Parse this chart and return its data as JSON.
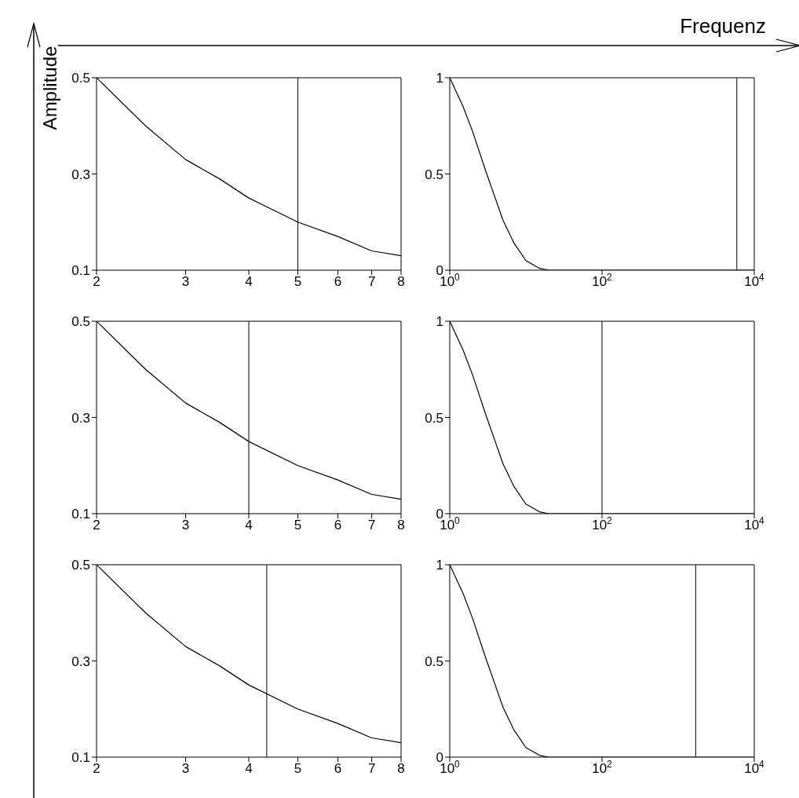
{
  "chart_data": [
    {
      "type": "line",
      "ylabel": "Amplitude",
      "x": [
        2,
        2.5,
        3,
        3.5,
        4,
        5,
        6,
        7,
        8
      ],
      "series": [
        {
          "color": "#000000",
          "values": [
            0.5,
            0.4,
            0.33,
            0.29,
            0.25,
            0.2,
            0.17,
            0.14,
            0.13
          ]
        }
      ],
      "xlim": [
        2,
        8
      ],
      "xticks": [
        2,
        3,
        4,
        5,
        6,
        7,
        8
      ],
      "ylim": [
        0.1,
        0.5
      ],
      "yticks": [
        0.1,
        0.3,
        0.5
      ],
      "log": "x",
      "ref_lines": [
        {
          "axis": "x",
          "value": 5,
          "color": "#000000"
        }
      ]
    },
    {
      "type": "line",
      "xlabel": "Frequenz",
      "x": [
        1,
        1.5,
        2,
        3,
        4,
        5,
        7,
        10,
        15,
        20,
        30,
        100,
        1000,
        10000
      ],
      "series": [
        {
          "color": "#000000",
          "values": [
            1,
            0.85,
            0.72,
            0.51,
            0.37,
            0.26,
            0.14,
            0.05,
            0.01,
            0,
            0,
            0,
            0,
            0
          ]
        }
      ],
      "xlim": [
        1,
        10000
      ],
      "xticks": [
        {
          "value": 1,
          "label": "10$^{0}$"
        },
        {
          "value": 100,
          "label": "10$^{2}$"
        },
        {
          "value": 10000,
          "label": "10$^{4}$"
        }
      ],
      "ylim": [
        0,
        1
      ],
      "yticks": [
        0,
        0.5,
        1
      ],
      "log": "x",
      "ref_lines": [
        {
          "axis": "x",
          "value": 5900,
          "color": "#000000"
        }
      ]
    },
    {
      "type": "line",
      "x": [
        2,
        2.5,
        3,
        3.5,
        4,
        5,
        6,
        7,
        8
      ],
      "series": [
        {
          "color": "#000000",
          "values": [
            0.5,
            0.4,
            0.33,
            0.29,
            0.25,
            0.2,
            0.17,
            0.14,
            0.13
          ]
        }
      ],
      "xlim": [
        2,
        8
      ],
      "xticks": [
        2,
        3,
        4,
        5,
        6,
        7,
        8
      ],
      "ylim": [
        0.1,
        0.5
      ],
      "yticks": [
        0.1,
        0.3,
        0.5
      ],
      "log": "x",
      "ref_lines": [
        {
          "axis": "x",
          "value": 4,
          "color": "#000000"
        }
      ]
    },
    {
      "type": "line",
      "x": [
        1,
        1.5,
        2,
        3,
        4,
        5,
        7,
        10,
        15,
        20,
        30,
        100,
        1000,
        10000
      ],
      "series": [
        {
          "color": "#000000",
          "values": [
            1,
            0.85,
            0.72,
            0.51,
            0.37,
            0.26,
            0.14,
            0.05,
            0.01,
            0,
            0,
            0,
            0,
            0
          ]
        }
      ],
      "xlim": [
        1,
        10000
      ],
      "xticks": [
        {
          "value": 1,
          "label": "10$^{0}$"
        },
        {
          "value": 100,
          "label": "10$^{2}$"
        },
        {
          "value": 10000,
          "label": "10$^{4}$"
        }
      ],
      "ylim": [
        0,
        1
      ],
      "yticks": [
        0,
        0.5,
        1
      ],
      "log": "x",
      "ref_lines": [
        {
          "axis": "x",
          "value": 100,
          "color": "#000000"
        }
      ]
    },
    {
      "type": "line",
      "x": [
        2,
        2.5,
        3,
        3.5,
        4,
        5,
        6,
        7,
        8
      ],
      "series": [
        {
          "color": "#000000",
          "values": [
            0.5,
            0.4,
            0.33,
            0.29,
            0.25,
            0.2,
            0.17,
            0.14,
            0.13
          ]
        }
      ],
      "xlim": [
        2,
        8
      ],
      "xticks": [
        2,
        3,
        4,
        5,
        6,
        7,
        8
      ],
      "ylim": [
        0.1,
        0.5
      ],
      "yticks": [
        0.1,
        0.3,
        0.5
      ],
      "log": "x",
      "ref_lines": [
        {
          "axis": "x",
          "value": 4.34,
          "color": "#000000"
        }
      ]
    },
    {
      "type": "line",
      "x": [
        1,
        1.5,
        2,
        3,
        4,
        5,
        7,
        10,
        15,
        20,
        30,
        100,
        1000,
        10000
      ],
      "series": [
        {
          "color": "#000000",
          "values": [
            1,
            0.85,
            0.72,
            0.51,
            0.37,
            0.26,
            0.14,
            0.05,
            0.01,
            0,
            0,
            0,
            0,
            0
          ]
        }
      ],
      "xlim": [
        1,
        10000
      ],
      "xticks": [
        {
          "value": 1,
          "label": "10$^{0}$"
        },
        {
          "value": 100,
          "label": "10$^{2}$"
        },
        {
          "value": 10000,
          "label": "10$^{4}$"
        }
      ],
      "ylim": [
        0,
        1
      ],
      "yticks": [
        0,
        0.5,
        1
      ],
      "log": "x",
      "ref_lines": [
        {
          "axis": "x",
          "value": 1700,
          "color": "#000000"
        }
      ]
    }
  ]
}
